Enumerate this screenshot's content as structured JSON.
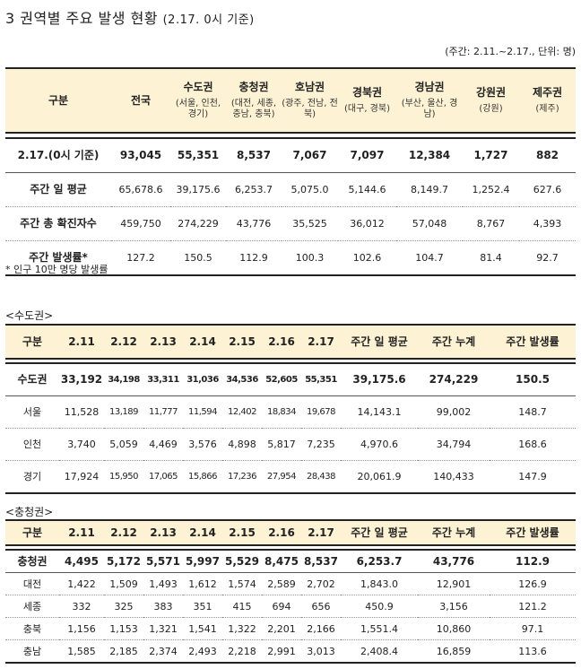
{
  "title": "3 권역별 주요 발생 현황",
  "title_sub": "(2.17. 0시 기준)",
  "unit_note": "(주간: 2.11.~2.17., 단위: 명)",
  "table1": {
    "headers": [
      {
        "name": "구분",
        "sub": ""
      },
      {
        "name": "전국",
        "sub": ""
      },
      {
        "name": "수도권",
        "sub": "(서울, 인천, 경기)"
      },
      {
        "name": "충청권",
        "sub": "(대전, 세종, 충남, 충북)"
      },
      {
        "name": "호남권",
        "sub": "(광주, 전남, 전북)"
      },
      {
        "name": "경북권",
        "sub": "(대구, 경북)"
      },
      {
        "name": "경남권",
        "sub": "(부산, 울산, 경남)"
      },
      {
        "name": "강원권",
        "sub": "(강원)"
      },
      {
        "name": "제주권",
        "sub": "(제주)"
      }
    ],
    "rows": [
      [
        "2.17.(0시 기준)",
        "93,045",
        "55,351",
        "8,537",
        "7,067",
        "7,097",
        "12,384",
        "1,727",
        "882"
      ],
      [
        "주간 일 평균",
        "65,678.6",
        "39,175.6",
        "6,253.7",
        "5,075.0",
        "5,144.6",
        "8,149.7",
        "1,252.4",
        "627.6"
      ],
      [
        "주간 총 확진자수",
        "459,750",
        "274,229",
        "43,776",
        "35,525",
        "36,012",
        "57,048",
        "8,767",
        "4,393"
      ],
      [
        "주간 발생률*",
        "127.2",
        "150.5",
        "112.9",
        "100.3",
        "102.6",
        "104.7",
        "81.4",
        "92.7"
      ]
    ]
  },
  "footnote": "* 인구 10만 명당 발생률",
  "sudo": {
    "label": "<수도권>",
    "headers": [
      "구분",
      "2.11",
      "2.12",
      "2.13",
      "2.14",
      "2.15",
      "2.16",
      "2.17",
      "주간 일 평균",
      "주간 누계",
      "주간 발생률"
    ],
    "rows": [
      [
        "수도권",
        "33,192",
        "34,198",
        "33,311",
        "31,036",
        "34,536",
        "52,605",
        "55,351",
        "39,175.6",
        "274,229",
        "150.5"
      ],
      [
        "서울",
        "11,528",
        "13,189",
        "11,777",
        "11,594",
        "12,402",
        "18,834",
        "19,678",
        "14,143.1",
        "99,002",
        "148.7"
      ],
      [
        "인천",
        "3,740",
        "5,059",
        "4,469",
        "3,576",
        "4,898",
        "5,817",
        "7,235",
        "4,970.6",
        "34,794",
        "168.6"
      ],
      [
        "경기",
        "17,924",
        "15,950",
        "17,065",
        "15,866",
        "17,236",
        "27,954",
        "28,438",
        "20,061.9",
        "140,433",
        "147.9"
      ]
    ]
  },
  "chung": {
    "label": "<충청권>",
    "headers": [
      "구분",
      "2.11",
      "2.12",
      "2.13",
      "2.14",
      "2.15",
      "2.16",
      "2.17",
      "주간 일 평균",
      "주간 누계",
      "주간 발생률"
    ],
    "rows": [
      [
        "충청권",
        "4,495",
        "5,172",
        "5,571",
        "5,997",
        "5,529",
        "8,475",
        "8,537",
        "6,253.7",
        "43,776",
        "112.9"
      ],
      [
        "대전",
        "1,422",
        "1,509",
        "1,493",
        "1,612",
        "1,574",
        "2,589",
        "2,702",
        "1,843.0",
        "12,901",
        "126.9"
      ],
      [
        "세종",
        "332",
        "325",
        "383",
        "351",
        "415",
        "694",
        "656",
        "450.9",
        "3,156",
        "121.2"
      ],
      [
        "충북",
        "1,156",
        "1,153",
        "1,321",
        "1,541",
        "1,322",
        "2,201",
        "2,166",
        "1,551.4",
        "10,860",
        "97.1"
      ],
      [
        "충남",
        "1,585",
        "2,185",
        "2,374",
        "2,493",
        "2,218",
        "2,991",
        "3,013",
        "2,408.4",
        "16,859",
        "113.6"
      ]
    ]
  }
}
